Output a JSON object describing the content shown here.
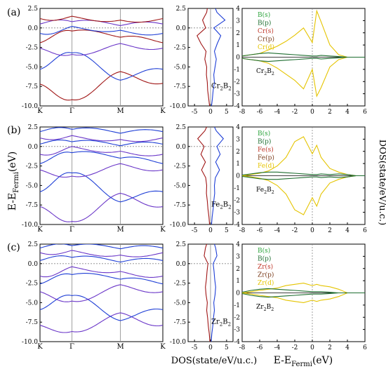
{
  "figure": {
    "y_axis_label": "E-E",
    "y_axis_label_sub": "Fermi",
    "y_axis_label_unit": "(eV)",
    "right_axis_label": "DOS(state/eV/u.c.)",
    "bottom_label_dos": "DOS(state/eV/u.c.)",
    "bottom_label_pdos": "E-E",
    "bottom_label_pdos_sub": "Fermi",
    "bottom_label_pdos_unit": "(eV)"
  },
  "colors": {
    "band_spin_up": "#1f3fd6",
    "band_spin_down": "#a01616",
    "band_mixed": "#6a36c8",
    "dos_up": "#1f3fd6",
    "dos_down": "#a01616",
    "B_s": "#2aa33a",
    "B_p": "#1e6e30",
    "M_s": "#c0392b",
    "M_p": "#7a3b1a",
    "M_d": "#e5c400"
  },
  "chart_data": [
    {
      "type": "line",
      "panel": "(a)",
      "subtype": "band-structure",
      "kpath": [
        "K",
        "Γ",
        "M",
        "K"
      ],
      "ylim": [
        -10,
        2.5
      ],
      "yticks": [
        "-10.0",
        "-7.5",
        "-5.0",
        "-2.5",
        "0.0",
        "2.5"
      ],
      "series": [
        {
          "values": [
            -7.2,
            -9.2,
            -5.6,
            -7.1
          ]
        },
        {
          "values": [
            -5.3,
            -3.2,
            -6.7,
            -5.3
          ]
        },
        {
          "values": [
            -2.6,
            -3.4,
            -2.0,
            -2.6
          ]
        },
        {
          "values": [
            -1.9,
            -0.4,
            -1.2,
            -1.9
          ]
        },
        {
          "values": [
            -0.7,
            0.2,
            -0.3,
            -0.7
          ]
        },
        {
          "values": [
            0.5,
            0.8,
            0.3,
            0.5
          ]
        },
        {
          "values": [
            1.2,
            1.5,
            1.0,
            1.2
          ]
        }
      ]
    },
    {
      "type": "line",
      "panel": "(a)",
      "subtype": "total-dos",
      "xlim": [
        -7,
        7
      ],
      "xticks": [
        "-5",
        "0",
        "5"
      ],
      "ylim": [
        -10,
        2.5
      ],
      "annotation": "Cr2B2",
      "dos_y": [
        -10,
        -9,
        -8,
        -7,
        -6,
        -5,
        -4,
        -3,
        -2,
        -1,
        0,
        1,
        2,
        2.5
      ],
      "series": [
        {
          "name": "spin-up",
          "values": [
            0.3,
            0.6,
            0.8,
            1.2,
            1.0,
            1.4,
            1.8,
            1.2,
            2.1,
            3.2,
            1.0,
            4.5,
            2.0,
            1.5
          ]
        },
        {
          "name": "spin-down",
          "values": [
            -0.3,
            -0.6,
            -0.9,
            -1.0,
            -1.3,
            -1.2,
            -1.8,
            -1.4,
            -3.0,
            -4.2,
            -1.5,
            -2.5,
            -1.2,
            -1.0
          ]
        }
      ]
    },
    {
      "type": "line",
      "panel": "(a)",
      "subtype": "pdos",
      "xlim": [
        -8,
        6
      ],
      "xticks": [
        "-8",
        "-6",
        "-4",
        "-2",
        "0",
        "2",
        "4",
        "6"
      ],
      "ylim": [
        -4,
        4
      ],
      "yticks": [
        "-4",
        "-3",
        "-2",
        "-1",
        "0",
        "1",
        "2",
        "3",
        "4"
      ],
      "annotation": "Cr2B2",
      "legend": [
        "B(s)",
        "B(p)",
        "Cr(s)",
        "Cr(p)",
        "Cr(d)"
      ],
      "pdos_x": [
        -8,
        -7,
        -6,
        -5,
        -4,
        -3,
        -2,
        -1,
        0,
        0.5,
        1,
        2,
        3,
        4,
        5,
        6
      ],
      "series": [
        {
          "name": "Cr(d)",
          "values": [
            0.1,
            0.2,
            0.3,
            0.6,
            0.9,
            1.3,
            1.8,
            2.4,
            1.2,
            3.8,
            2.9,
            1.0,
            0.2,
            0.0,
            0.0,
            0.0
          ]
        },
        {
          "name": "Cr(d)",
          "values": [
            -0.1,
            -0.2,
            -0.3,
            -0.5,
            -0.9,
            -1.4,
            -1.9,
            -2.6,
            -1.0,
            -3.2,
            -2.5,
            -0.8,
            -0.2,
            0.0,
            0.0,
            0.0
          ]
        },
        {
          "name": "B(p)",
          "values": [
            0.1,
            0.2,
            0.3,
            0.35,
            0.3,
            0.25,
            0.2,
            0.15,
            0.1,
            0.1,
            0.15,
            0.1,
            0.05,
            0.0,
            0.0,
            0.0
          ]
        },
        {
          "name": "B(p)",
          "values": [
            -0.1,
            -0.2,
            -0.3,
            -0.35,
            -0.3,
            -0.25,
            -0.2,
            -0.15,
            -0.1,
            -0.1,
            -0.15,
            -0.1,
            -0.05,
            0.0,
            0.0,
            0.0
          ]
        }
      ]
    },
    {
      "type": "line",
      "panel": "(b)",
      "subtype": "band-structure",
      "kpath": [
        "K",
        "Γ",
        "M",
        "K"
      ],
      "ylim": [
        -10,
        2.5
      ],
      "yticks": [
        "-10.0",
        "-7.5",
        "-5.0",
        "-2.5",
        "0.0",
        "2.5"
      ],
      "series": [
        {
          "values": [
            -7.7,
            -9.6,
            -6.0,
            -7.7
          ]
        },
        {
          "values": [
            -5.8,
            -3.4,
            -7.1,
            -5.8
          ]
        },
        {
          "values": [
            -3.0,
            -3.8,
            -2.2,
            -3.0
          ]
        },
        {
          "values": [
            -2.2,
            -0.8,
            -1.5,
            -2.2
          ]
        },
        {
          "values": [
            -1.0,
            0.0,
            -0.6,
            -1.0
          ]
        },
        {
          "values": [
            0.3,
            0.6,
            0.1,
            0.3
          ]
        },
        {
          "values": [
            1.1,
            1.4,
            0.9,
            1.1
          ]
        },
        {
          "values": [
            1.9,
            2.2,
            1.7,
            1.9
          ]
        }
      ]
    },
    {
      "type": "line",
      "panel": "(b)",
      "subtype": "total-dos",
      "xlim": [
        -7,
        7
      ],
      "xticks": [
        "-5",
        "0",
        "5"
      ],
      "ylim": [
        -10,
        2.5
      ],
      "annotation": "Fe2B2",
      "dos_y": [
        -10,
        -9,
        -8,
        -7,
        -6,
        -5,
        -4,
        -3,
        -2,
        -1,
        0,
        1,
        2,
        2.5
      ],
      "series": [
        {
          "name": "spin-up",
          "values": [
            0.3,
            0.5,
            0.8,
            1.0,
            1.3,
            1.2,
            1.5,
            2.8,
            1.6,
            3.0,
            2.0,
            4.0,
            1.8,
            1.2
          ]
        },
        {
          "name": "spin-down",
          "values": [
            -0.3,
            -0.5,
            -0.8,
            -1.0,
            -1.3,
            -1.2,
            -1.5,
            -2.8,
            -1.6,
            -3.0,
            -2.0,
            -4.0,
            -1.8,
            -1.2
          ]
        }
      ]
    },
    {
      "type": "line",
      "panel": "(b)",
      "subtype": "pdos",
      "xlim": [
        -8,
        6
      ],
      "xticks": [
        "-8",
        "-6",
        "-4",
        "-2",
        "0",
        "2",
        "4",
        "6"
      ],
      "ylim": [
        -4,
        4
      ],
      "yticks": [
        "-4",
        "-3",
        "-2",
        "-1",
        "0",
        "1",
        "2",
        "3",
        "4"
      ],
      "annotation": "Fe2B2",
      "legend": [
        "B(s)",
        "B(p)",
        "Fe(s)",
        "Fe(p)",
        "Fe(d)"
      ],
      "pdos_x": [
        -8,
        -7,
        -6,
        -5,
        -4,
        -3,
        -2,
        -1,
        0,
        0.5,
        1,
        2,
        3,
        4,
        5,
        6
      ],
      "series": [
        {
          "name": "Fe(d)",
          "values": [
            0.0,
            0.1,
            0.2,
            0.4,
            0.8,
            1.5,
            2.8,
            3.2,
            1.8,
            2.5,
            1.5,
            0.6,
            0.3,
            0.1,
            0.0,
            0.0
          ]
        },
        {
          "name": "Fe(d)",
          "values": [
            0.0,
            -0.1,
            -0.2,
            -0.4,
            -0.8,
            -1.5,
            -2.8,
            -3.2,
            -1.8,
            -2.5,
            -1.5,
            -0.6,
            -0.3,
            -0.1,
            0.0,
            0.0
          ]
        },
        {
          "name": "B(p)",
          "values": [
            0.05,
            0.15,
            0.25,
            0.3,
            0.3,
            0.25,
            0.2,
            0.15,
            0.1,
            0.1,
            0.15,
            0.1,
            0.15,
            0.1,
            0.0,
            0.0
          ]
        },
        {
          "name": "B(p)",
          "values": [
            -0.05,
            -0.15,
            -0.25,
            -0.3,
            -0.3,
            -0.25,
            -0.2,
            -0.15,
            -0.1,
            -0.1,
            -0.15,
            -0.1,
            -0.15,
            -0.1,
            0.0,
            0.0
          ]
        }
      ]
    },
    {
      "type": "line",
      "panel": "(c)",
      "subtype": "band-structure",
      "kpath": [
        "K",
        "Γ",
        "M",
        "K"
      ],
      "ylim": [
        -10,
        2.5
      ],
      "yticks": [
        "-10.0",
        "-7.5",
        "-5.0",
        "-2.5",
        "0.0",
        "2.5"
      ],
      "series": [
        {
          "values": [
            -7.9,
            -8.7,
            -6.3,
            -7.9
          ]
        },
        {
          "values": [
            -5.9,
            -4.1,
            -7.3,
            -5.9
          ]
        },
        {
          "values": [
            -3.6,
            -4.8,
            -2.7,
            -3.6
          ]
        },
        {
          "values": [
            -2.6,
            -1.4,
            -2.0,
            -2.6
          ]
        },
        {
          "values": [
            -1.6,
            -0.4,
            -1.0,
            -1.6
          ]
        },
        {
          "values": [
            0.4,
            0.8,
            0.2,
            0.4
          ]
        },
        {
          "values": [
            1.4,
            1.7,
            1.1,
            1.4
          ]
        },
        {
          "values": [
            2.0,
            2.3,
            1.9,
            2.0
          ]
        }
      ]
    },
    {
      "type": "line",
      "panel": "(c)",
      "subtype": "total-dos",
      "xlim": [
        -7,
        7
      ],
      "xticks": [
        "-5",
        "0",
        "5"
      ],
      "ylim": [
        -10,
        2.5
      ],
      "annotation": "Zr2B2",
      "dos_y": [
        -10,
        -9,
        -8,
        -7,
        -6,
        -5,
        -4,
        -3,
        -2,
        -1,
        0,
        1,
        2,
        2.5
      ],
      "series": [
        {
          "name": "spin-up",
          "values": [
            0.2,
            0.4,
            0.7,
            0.9,
            1.2,
            1.0,
            1.4,
            1.6,
            1.3,
            1.1,
            0.8,
            2.0,
            1.6,
            1.2
          ]
        },
        {
          "name": "spin-down",
          "values": [
            -0.2,
            -0.4,
            -0.7,
            -0.9,
            -1.2,
            -1.0,
            -1.4,
            -1.6,
            -1.3,
            -1.1,
            -0.8,
            -2.0,
            -1.6,
            -1.2
          ]
        }
      ]
    },
    {
      "type": "line",
      "panel": "(c)",
      "subtype": "pdos",
      "xlim": [
        -8,
        6
      ],
      "xticks": [
        "-8",
        "-6",
        "-4",
        "-2",
        "0",
        "2",
        "4",
        "6"
      ],
      "ylim": [
        -4,
        4
      ],
      "yticks": [
        "-4",
        "-3",
        "-2",
        "-1",
        "0",
        "1",
        "2",
        "3",
        "4"
      ],
      "annotation": "Zr2B2",
      "legend": [
        "B(s)",
        "B(p)",
        "Zr(s)",
        "Zr(p)",
        "Zr(d)"
      ],
      "pdos_x": [
        -8,
        -7,
        -6,
        -5,
        -4,
        -3,
        -2,
        -1,
        0,
        0.5,
        1,
        2,
        3,
        4,
        5,
        6
      ],
      "series": [
        {
          "name": "Zr(d)",
          "values": [
            0.0,
            0.1,
            0.2,
            0.3,
            0.4,
            0.6,
            0.7,
            0.8,
            0.6,
            0.7,
            0.6,
            0.5,
            0.3,
            0.0,
            0.0,
            0.0
          ]
        },
        {
          "name": "Zr(d)",
          "values": [
            0.0,
            -0.1,
            -0.2,
            -0.3,
            -0.4,
            -0.6,
            -0.7,
            -0.8,
            -0.6,
            -0.7,
            -0.6,
            -0.5,
            -0.3,
            0.0,
            0.0,
            0.0
          ]
        },
        {
          "name": "B(p)",
          "values": [
            0.05,
            0.2,
            0.3,
            0.35,
            0.3,
            0.25,
            0.2,
            0.15,
            0.1,
            0.1,
            0.1,
            0.05,
            0.0,
            0.0,
            0.0,
            0.0
          ]
        },
        {
          "name": "B(p)",
          "values": [
            -0.05,
            -0.2,
            -0.3,
            -0.35,
            -0.3,
            -0.25,
            -0.2,
            -0.15,
            -0.1,
            -0.1,
            -0.1,
            -0.05,
            0.0,
            0.0,
            0.0,
            0.0
          ]
        }
      ]
    }
  ]
}
